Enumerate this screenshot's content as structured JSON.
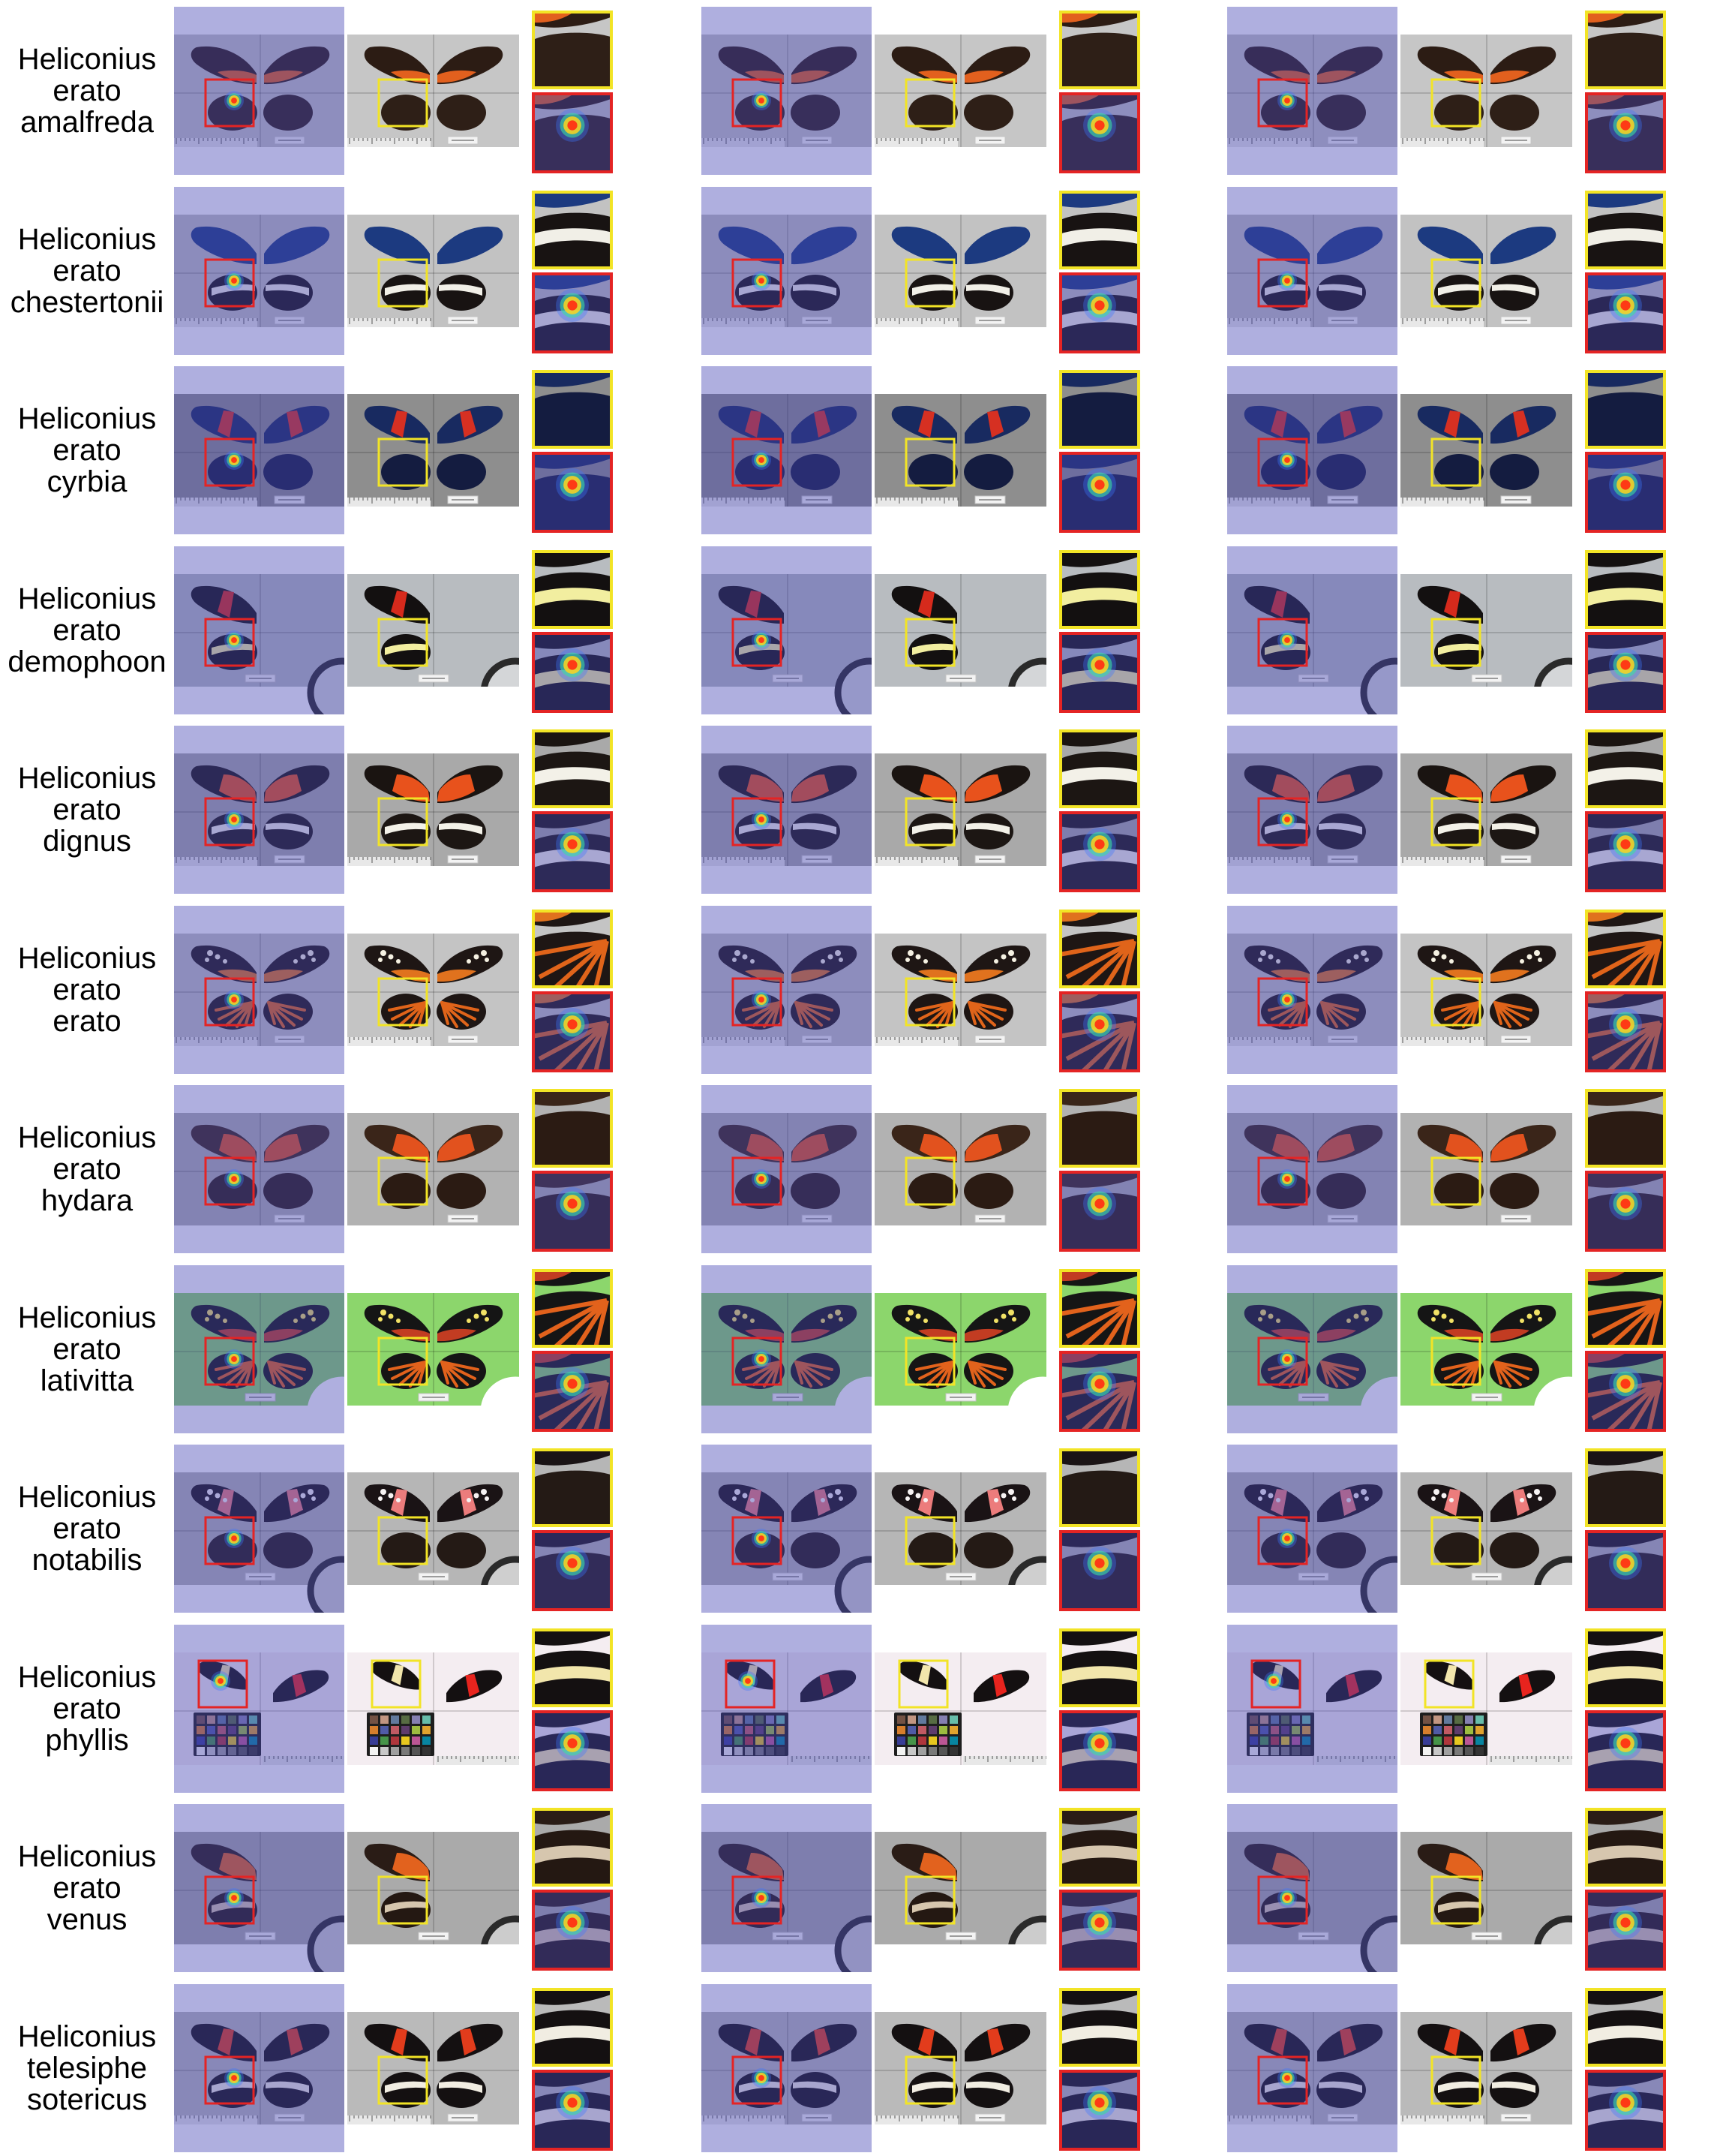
{
  "figure": {
    "colors": {
      "heatmap_overlay": "#4646b4",
      "heatmap_box": "#e42424",
      "original_box": "#f2e426"
    }
  },
  "rows": [
    {
      "label": [
        "Heliconius",
        "erato",
        "amalfreda"
      ],
      "specimen_view": "both-sides",
      "props": [
        "ruler",
        "tag"
      ],
      "colors": {
        "bg": "#c6c6c6",
        "fw": "#2c1c14",
        "fw_patch": "#e2601e",
        "fw_patch_shape": "base",
        "hw": "#2e1f17"
      }
    },
    {
      "label": [
        "Heliconius",
        "erato",
        "chestertonii"
      ],
      "specimen_view": "both-sides",
      "props": [
        "ruler",
        "tag"
      ],
      "colors": {
        "bg": "#c2c2c2",
        "fw": "#1c3a80",
        "hw": "#181312",
        "hw_band": "#f1efe7"
      }
    },
    {
      "label": [
        "Heliconius",
        "erato",
        "cyrbia"
      ],
      "specimen_view": "both-sides",
      "props": [
        "ruler",
        "tag"
      ],
      "colors": {
        "bg": "#8e8e8e",
        "fw": "#182a60",
        "fw_patch": "#d63022",
        "fw_patch_shape": "band",
        "hw": "#141c40"
      }
    },
    {
      "label": [
        "Heliconius",
        "erato",
        "demophoon"
      ],
      "specimen_view": "left-side",
      "props": [
        "tag",
        "loupe"
      ],
      "colors": {
        "bg": "#b8bcc0",
        "fw": "#131010",
        "fw_patch": "#d62a1c",
        "fw_patch_shape": "band",
        "hw": "#131010",
        "hw_band": "#f2eea0",
        "loupe": "#2a2a2a",
        "loupe_fill": "#d4d6d8"
      }
    },
    {
      "label": [
        "Heliconius",
        "erato",
        "dignus"
      ],
      "specimen_view": "both-sides",
      "props": [
        "ruler",
        "tag"
      ],
      "colors": {
        "bg": "#a9a9a9",
        "fw": "#1a1411",
        "fw_patch": "#e8521c",
        "fw_patch_shape": "large",
        "hw": "#1c1613",
        "hw_band": "#f3f1e8"
      }
    },
    {
      "label": [
        "Heliconius",
        "erato",
        "erato"
      ],
      "specimen_view": "both-sides",
      "props": [
        "ruler",
        "tag"
      ],
      "colors": {
        "bg": "#c4c4c4",
        "fw": "#1e1614",
        "fw_patch": "#e0721e",
        "fw_patch_shape": "base",
        "fw_spots": "#f5f1e2",
        "hw": "#1e1614",
        "hw_rays": "#e0641a"
      }
    },
    {
      "label": [
        "Heliconius",
        "erato",
        "hydara"
      ],
      "specimen_view": "both-sides",
      "props": [
        "tag"
      ],
      "colors": {
        "bg": "#b2b2b2",
        "fw": "#3a2519",
        "fw_patch": "#e2521e",
        "fw_patch_shape": "large",
        "hw": "#2b1b13"
      }
    },
    {
      "label": [
        "Heliconius",
        "erato",
        "lativitta"
      ],
      "specimen_view": "both-sides",
      "props": [
        "tag",
        "loupe"
      ],
      "colors": {
        "bg": "#8cd66c",
        "fw": "#151515",
        "fw_patch": "#c23c22",
        "fw_patch_shape": "base",
        "fw_spots": "#f2e266",
        "hw": "#151515",
        "hw_rays": "#e2621c",
        "loupe": "#ffffff",
        "loupe_fill": "#ffffff"
      }
    },
    {
      "label": [
        "Heliconius",
        "erato",
        "notabilis"
      ],
      "specimen_view": "both-sides",
      "props": [
        "tag",
        "loupe"
      ],
      "colors": {
        "bg": "#b6b6b6",
        "fw": "#1a1315",
        "fw_patch": "#ec7c7c",
        "fw_patch_shape": "band",
        "fw_spots": "#f6f2f2",
        "hw": "#241a15",
        "loupe": "#2a2a2a",
        "loupe_fill": "#cfcfcf"
      }
    },
    {
      "label": [
        "Heliconius",
        "erato",
        "phyllis"
      ],
      "specimen_view": "forewings",
      "props": [
        "color-checker",
        "ruler"
      ],
      "colors": {
        "bg": "#f4edf1",
        "fw": "#141011",
        "fw_patch": "#f2e6ac",
        "fw_patch_shape": "band",
        "fw_patch_right": "#e8241e",
        "hw": "#141011",
        "hw_band": "#f2e6ac"
      }
    },
    {
      "label": [
        "Heliconius",
        "erato",
        "venus"
      ],
      "specimen_view": "left-side",
      "props": [
        "tag",
        "loupe"
      ],
      "colors": {
        "bg": "#aaaaaa",
        "fw": "#2a1c16",
        "fw_patch": "#e2621e",
        "fw_patch_shape": "large",
        "hw": "#241812",
        "hw_band": "#d6c6ae",
        "loupe": "#2a2a2a",
        "loupe_fill": "#cccccc"
      }
    },
    {
      "label": [
        "Heliconius",
        "telesiphe",
        "sotericus"
      ],
      "specimen_view": "both-sides",
      "props": [
        "ruler",
        "tag"
      ],
      "colors": {
        "bg": "#bababa",
        "fw": "#141011",
        "fw_patch": "#e23c1c",
        "fw_patch_shape": "band",
        "hw": "#141011",
        "hw_band": "#f1ede2"
      }
    }
  ]
}
